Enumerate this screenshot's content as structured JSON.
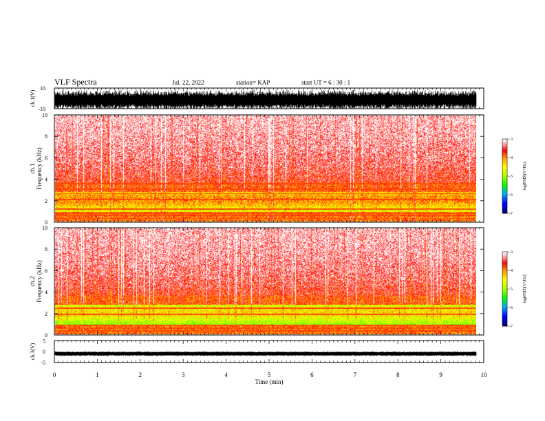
{
  "header": {
    "title": "VLF Spectra",
    "date": "Jul. 22, 2022",
    "station": "station= KAP",
    "start": "start  UT =   6 : 30 : 1"
  },
  "chart_data": [
    {
      "id": "ch1-waveform",
      "type": "line",
      "ylabel": "ch.1(V)",
      "ylim": [
        -10,
        10
      ],
      "yticks": [
        "10",
        "-10"
      ],
      "xlim": [
        0,
        10
      ],
      "data_end_min": 9.83,
      "note": "dense broadband waveform filling most of the range"
    },
    {
      "id": "ch1-spectrogram",
      "type": "heatmap",
      "ylabel": "ch.1\nFrequency (kHz)",
      "ylim": [
        0,
        10
      ],
      "yticks": [
        "0",
        "2",
        "4",
        "6",
        "8",
        "10"
      ],
      "xlim": [
        0,
        10
      ],
      "data_end_min": 9.83,
      "colorbar": {
        "label": "log(PSD)(V²/Hz)",
        "range": [
          -7,
          -3
        ],
        "ticks": [
          "-3",
          "-4",
          "-5",
          "-6",
          "-7"
        ]
      }
    },
    {
      "id": "ch2-spectrogram",
      "type": "heatmap",
      "ylabel": "ch.2\nFrequency (kHz)",
      "ylim": [
        0,
        10
      ],
      "yticks": [
        "0",
        "2",
        "4",
        "6",
        "8",
        "10"
      ],
      "xlim": [
        0,
        10
      ],
      "data_end_min": 9.83,
      "colorbar": {
        "label": "log(PSD)(V²/Hz)",
        "range": [
          -7,
          -3
        ],
        "ticks": [
          "-3",
          "-4",
          "-5",
          "-6",
          "-7"
        ]
      }
    },
    {
      "id": "ch3-waveform",
      "type": "line",
      "ylabel": "ch.3(V)",
      "ylim": [
        -5,
        5
      ],
      "yticks": [
        "5",
        "0",
        "-5"
      ],
      "xlim": [
        0,
        10
      ],
      "data_end_min": 9.83,
      "note": "narrow band around -1 V"
    }
  ],
  "xaxis": {
    "label": "Time (min)",
    "ticks": [
      "0",
      "1",
      "2",
      "3",
      "4",
      "5",
      "6",
      "7",
      "8",
      "9",
      "10"
    ]
  },
  "colors": {
    "colormap": [
      "#000080",
      "#0000ff",
      "#00aaff",
      "#00ff00",
      "#aaff00",
      "#ffff00",
      "#ffaa00",
      "#ff0000",
      "#ff8080",
      "#ffffff"
    ]
  }
}
